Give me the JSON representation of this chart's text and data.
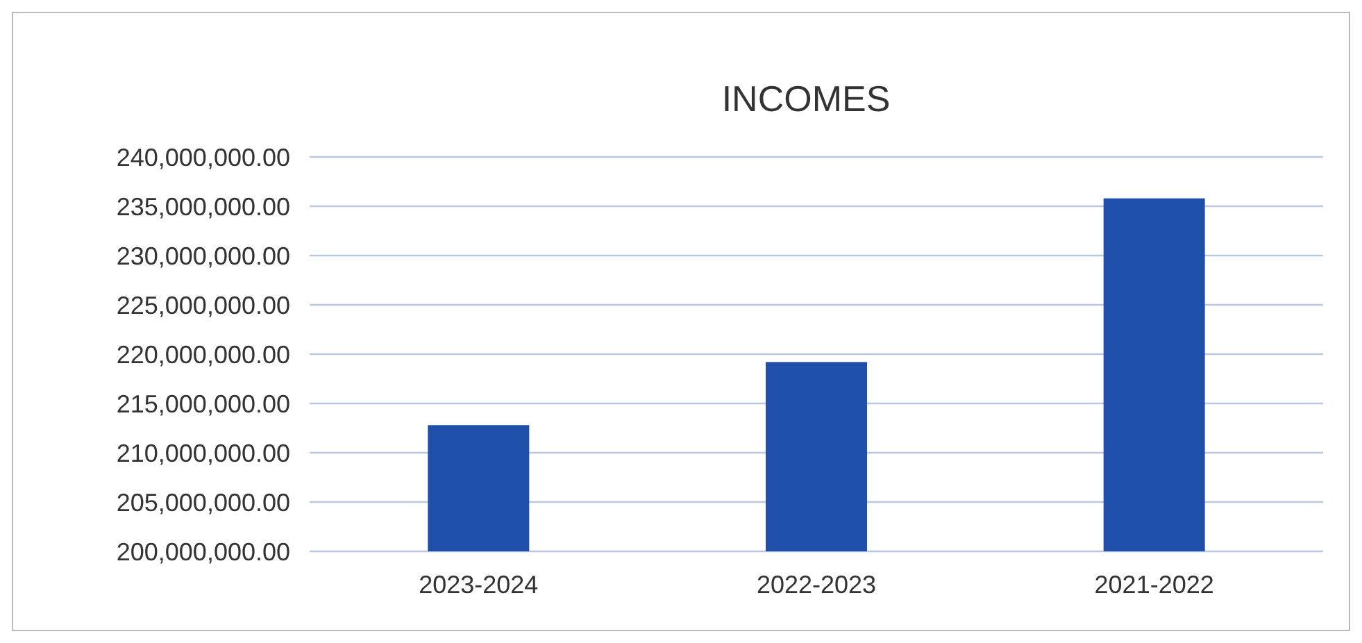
{
  "chart_data": {
    "type": "bar",
    "title": "INCOMES",
    "categories": [
      "2023-2024",
      "2022-2023",
      "2021-2022"
    ],
    "values": [
      212800000,
      219200000,
      235800000
    ],
    "color": "#1f4fa8",
    "ylim": [
      200000000,
      240000000
    ],
    "yticks": [
      {
        "value": 200000000,
        "label": "200,000,000.00"
      },
      {
        "value": 205000000,
        "label": "205,000,000.00"
      },
      {
        "value": 210000000,
        "label": "210,000,000.00"
      },
      {
        "value": 215000000,
        "label": "215,000,000.00"
      },
      {
        "value": 220000000,
        "label": "220,000,000.00"
      },
      {
        "value": 225000000,
        "label": "225,000,000.00"
      },
      {
        "value": 230000000,
        "label": "230,000,000.00"
      },
      {
        "value": 235000000,
        "label": "235,000,000.00"
      },
      {
        "value": 240000000,
        "label": "240,000,000.00"
      }
    ],
    "grid": true
  }
}
